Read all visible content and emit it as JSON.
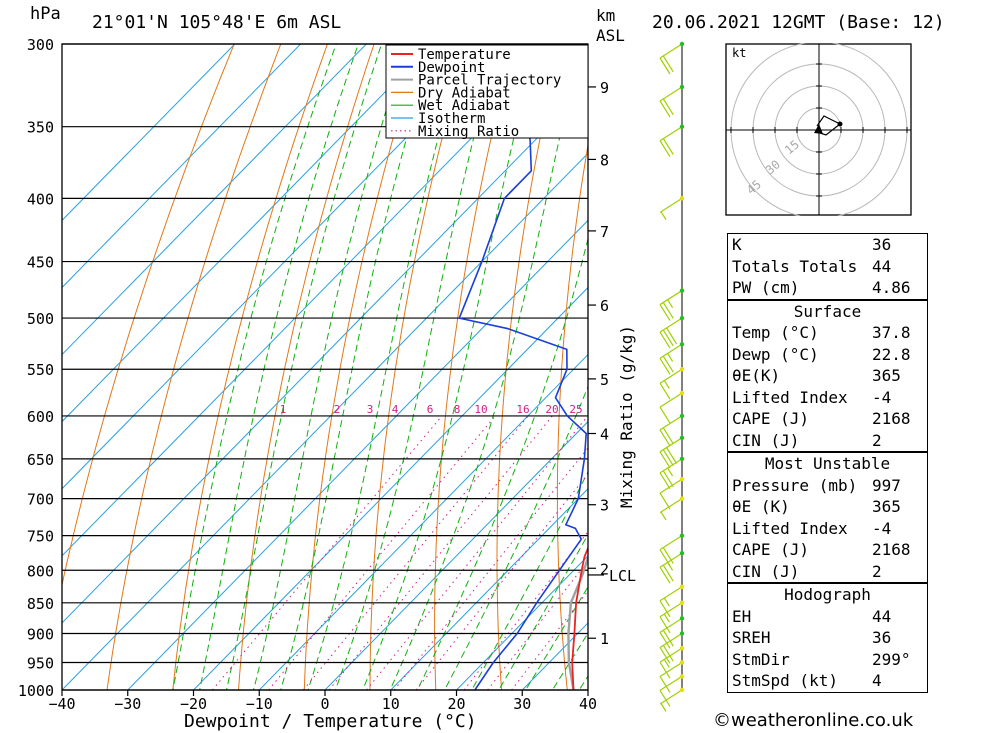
{
  "header": {
    "unit_hpa": "hPa",
    "location": "21°01'N  105°48'E  6m  ASL",
    "unit_km": "km",
    "unit_asl": "ASL",
    "datetime": "20.06.2021  12GMT  (Base: 12)"
  },
  "chart_data": {
    "type": "line",
    "xlabel": "Dewpoint / Temperature (°C)",
    "ylabel": "Mixing Ratio (g/kg)",
    "x_ticks": [
      -40,
      -30,
      -20,
      -10,
      0,
      10,
      20,
      30,
      40
    ],
    "pressure_levels": [
      300,
      350,
      400,
      450,
      500,
      550,
      600,
      650,
      700,
      750,
      800,
      850,
      900,
      950,
      1000
    ],
    "km_ticks": [
      {
        "km": "1",
        "p": 908
      },
      {
        "km": "2",
        "p": 797
      },
      {
        "km": "3",
        "p": 708
      },
      {
        "km": "4",
        "p": 620
      },
      {
        "km": "5",
        "p": 560
      },
      {
        "km": "6",
        "p": 488
      },
      {
        "km": "7",
        "p": 425
      },
      {
        "km": "8",
        "p": 372
      },
      {
        "km": "9",
        "p": 325
      }
    ],
    "lcl": {
      "label": "LCL",
      "p": 807
    },
    "mixing_ratio_labels": [
      "1",
      "2",
      "3",
      "4",
      "6",
      "8",
      "10",
      "16",
      "20",
      "25"
    ],
    "legend": [
      "Temperature",
      "Dewpoint",
      "Parcel Trajectory",
      "Dry Adiabat",
      "Wet Adiabat",
      "Isotherm",
      "Mixing Ratio"
    ],
    "series": [
      {
        "name": "Temperature",
        "color": "#ee2222",
        "points": [
          [
            1000,
            37.8
          ],
          [
            950,
            33.5
          ],
          [
            900,
            29.5
          ],
          [
            850,
            25.2
          ],
          [
            800,
            21.2
          ],
          [
            780,
            19.6
          ],
          [
            760,
            18.4
          ],
          [
            745,
            17.8
          ],
          [
            740,
            17.3
          ],
          [
            735,
            18.4
          ],
          [
            720,
            17.0
          ],
          [
            700,
            15.0
          ],
          [
            650,
            11.7
          ],
          [
            600,
            7.7
          ],
          [
            550,
            2.0
          ],
          [
            520,
            -2.0
          ],
          [
            500,
            -5.0
          ],
          [
            450,
            -10.5
          ],
          [
            400,
            -17.0
          ],
          [
            380,
            -20.6
          ],
          [
            360,
            -21.6
          ]
        ]
      },
      {
        "name": "Dewpoint",
        "color": "#1a3ed8",
        "points": [
          [
            1000,
            22.8
          ],
          [
            950,
            21.5
          ],
          [
            900,
            20.8
          ],
          [
            850,
            19.2
          ],
          [
            800,
            17.8
          ],
          [
            755,
            16.5
          ],
          [
            740,
            14.0
          ],
          [
            735,
            12.0
          ],
          [
            700,
            10.0
          ],
          [
            650,
            5.0
          ],
          [
            620,
            1.5
          ],
          [
            600,
            -4.0
          ],
          [
            580,
            -8.5
          ],
          [
            550,
            -11.0
          ],
          [
            530,
            -14.0
          ],
          [
            510,
            -26.0
          ],
          [
            500,
            -35.0
          ],
          [
            450,
            -40.0
          ],
          [
            400,
            -46.0
          ],
          [
            380,
            -46.0
          ],
          [
            360,
            -50.5
          ],
          [
            340,
            -55.5
          ],
          [
            320,
            -61.0
          ],
          [
            310,
            -63.5
          ],
          [
            300,
            -63.0
          ]
        ]
      },
      {
        "name": "Parcel Trajectory",
        "color": "#a0a0a0",
        "points": [
          [
            1000,
            37.8
          ],
          [
            950,
            33.0
          ],
          [
            900,
            28.6
          ],
          [
            850,
            24.4
          ],
          [
            807,
            22.0
          ],
          [
            760,
            18.8
          ],
          [
            700,
            15.3
          ],
          [
            650,
            12.0
          ],
          [
            600,
            8.2
          ],
          [
            550,
            3.5
          ],
          [
            500,
            -1.8
          ],
          [
            450,
            -7.8
          ],
          [
            400,
            -14.5
          ],
          [
            370,
            -19.3
          ]
        ]
      }
    ],
    "wind_barbs": [
      {
        "p": 1000,
        "speed_kt": 5
      },
      {
        "p": 975,
        "speed_kt": 10
      },
      {
        "p": 950,
        "speed_kt": 10
      },
      {
        "p": 925,
        "speed_kt": 15
      },
      {
        "p": 900,
        "speed_kt": 20
      },
      {
        "p": 875,
        "speed_kt": 20
      },
      {
        "p": 850,
        "speed_kt": 15
      },
      {
        "p": 825,
        "speed_kt": 15
      },
      {
        "p": 775,
        "speed_kt": 25
      },
      {
        "p": 750,
        "speed_kt": 20
      },
      {
        "p": 700,
        "speed_kt": 5
      },
      {
        "p": 675,
        "speed_kt": 10
      },
      {
        "p": 650,
        "speed_kt": 25
      },
      {
        "p": 625,
        "speed_kt": 30
      },
      {
        "p": 600,
        "speed_kt": 20
      },
      {
        "p": 575,
        "speed_kt": 10
      },
      {
        "p": 550,
        "speed_kt": 15
      },
      {
        "p": 525,
        "speed_kt": 25
      },
      {
        "p": 500,
        "speed_kt": 30
      },
      {
        "p": 475,
        "speed_kt": 25
      },
      {
        "p": 400,
        "speed_kt": 5
      },
      {
        "p": 350,
        "speed_kt": 20
      },
      {
        "p": 325,
        "speed_kt": 20
      },
      {
        "p": 300,
        "speed_kt": 20
      }
    ]
  },
  "hodograph": {
    "unit": "kt",
    "ring_labels": [
      "15",
      "30",
      "45"
    ]
  },
  "indices": {
    "rows": [
      {
        "label": "K",
        "value": "36"
      },
      {
        "label": "Totals Totals",
        "value": "44"
      },
      {
        "label": "PW (cm)",
        "value": "4.86"
      }
    ]
  },
  "surface": {
    "title": "Surface",
    "rows": [
      {
        "label": "Temp (°C)",
        "value": "37.8"
      },
      {
        "label": "Dewp (°C)",
        "value": "22.8"
      },
      {
        "label": "θE(K)",
        "value": "365"
      },
      {
        "label": "Lifted Index",
        "value": "-4"
      },
      {
        "label": "CAPE (J)",
        "value": "2168"
      },
      {
        "label": "CIN (J)",
        "value": "2"
      }
    ]
  },
  "most_unstable": {
    "title": "Most Unstable",
    "rows": [
      {
        "label": "Pressure (mb)",
        "value": "997"
      },
      {
        "label": "θE (K)",
        "value": "365"
      },
      {
        "label": "Lifted Index",
        "value": "-4"
      },
      {
        "label": "CAPE (J)",
        "value": "2168"
      },
      {
        "label": "CIN (J)",
        "value": "2"
      }
    ]
  },
  "hodograph_params": {
    "title": "Hodograph",
    "rows": [
      {
        "label": "EH",
        "value": "44"
      },
      {
        "label": "SREH",
        "value": "36"
      },
      {
        "label": "StmDir",
        "value": "299°"
      },
      {
        "label": "StmSpd (kt)",
        "value": "4"
      }
    ]
  },
  "footer": {
    "copyright": "©weatheronline.co.uk"
  },
  "colors": {
    "temperature": "#ee2222",
    "dewpoint": "#1a3ed8",
    "parcel": "#a0a0a0",
    "dry_adiabat": "#e07818",
    "wet_adiabat": "#10b010",
    "isotherm": "#28a0e0",
    "mixing_ratio": "#d0208a",
    "wind_barb": "#a0d000"
  }
}
